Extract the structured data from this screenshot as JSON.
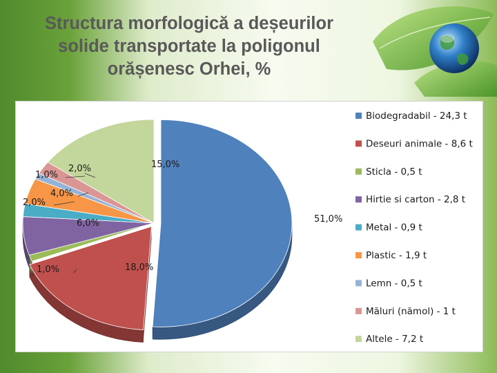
{
  "title": "Structura morfologică a deșeurilor\nsolide transportate la poligonul\norășenesc Orhei, %",
  "chart_data": {
    "type": "pie",
    "title": "Structura morfologică a deșeurilor solide transportate la poligonul orășenesc Orhei, %",
    "three_d": true,
    "legend_position": "right",
    "series": [
      {
        "legend": "Biodegradabil - 24,3 t",
        "value": 51.0,
        "label": "51,0%",
        "color": "#4f81bd"
      },
      {
        "legend": "Deseuri animale - 8,6 t",
        "value": 18.0,
        "label": "18,0%",
        "color": "#c0504d"
      },
      {
        "legend": "Sticla - 0,5 t",
        "value": 1.0,
        "label": "1,0%",
        "color": "#9bbb59"
      },
      {
        "legend": "Hirtie si carton - 2,8 t",
        "value": 6.0,
        "label": "6,0%",
        "color": "#8064a2"
      },
      {
        "legend": "Metal - 0,9 t",
        "value": 2.0,
        "label": "2,0%",
        "color": "#4bacc6"
      },
      {
        "legend": "Plastic - 1,9 t",
        "value": 4.0,
        "label": "4,0%",
        "color": "#f79646"
      },
      {
        "legend": "Lemn - 0,5 t",
        "value": 1.0,
        "label": "1,0%",
        "color": "#95b3d7"
      },
      {
        "legend": "Măluri (nămol) - 1 t",
        "value": 2.0,
        "label": "2,0%",
        "color": "#d99694"
      },
      {
        "legend": "Altele - 7,2 t",
        "value": 15.0,
        "label": "15,0%",
        "color": "#c3d69b"
      }
    ]
  }
}
